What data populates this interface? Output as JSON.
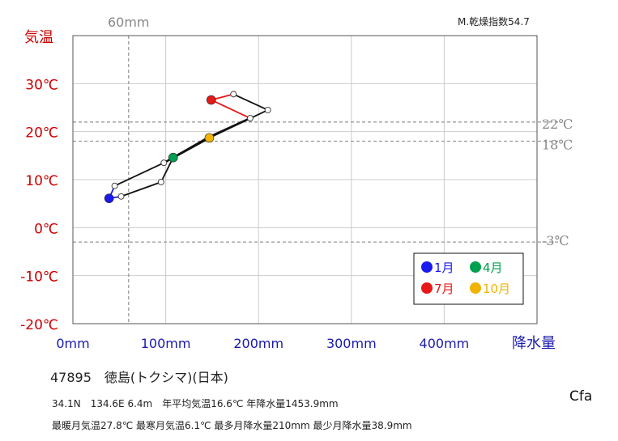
{
  "chart_data": {
    "type": "line",
    "ylabel": "気温",
    "xlabel": "降水量",
    "x_unit": "mm",
    "xlim": [
      0,
      500
    ],
    "ylim": [
      -20,
      40
    ],
    "x_ticks": [
      0,
      100,
      200,
      300,
      400
    ],
    "x_tick_labels": [
      "0mm",
      "100mm",
      "200mm",
      "300mm",
      "400mm"
    ],
    "y_ticks": [
      -20,
      -10,
      0,
      10,
      20,
      30
    ],
    "y_tick_labels": [
      "-20℃",
      "-10℃",
      "0℃",
      "10℃",
      "20℃",
      "30℃"
    ],
    "reference_lines": {
      "vertical": [
        {
          "x": 60,
          "label": "60mm"
        }
      ],
      "horizontal": [
        {
          "y": 22,
          "label": "22℃"
        },
        {
          "y": 18,
          "label": "18℃"
        },
        {
          "y": -3,
          "label": "-3℃"
        }
      ]
    },
    "aridity_index_label": "M.乾燥指数54.7",
    "months": [
      {
        "month": 1,
        "precip": 39,
        "temp": 6.1
      },
      {
        "month": 2,
        "precip": 52,
        "temp": 6.5
      },
      {
        "month": 3,
        "precip": 95,
        "temp": 9.5
      },
      {
        "month": 4,
        "precip": 108,
        "temp": 14.6
      },
      {
        "month": 5,
        "precip": 147,
        "temp": 18.9
      },
      {
        "month": 6,
        "precip": 191,
        "temp": 22.8
      },
      {
        "month": 7,
        "precip": 149,
        "temp": 26.6
      },
      {
        "month": 8,
        "precip": 173,
        "temp": 27.8
      },
      {
        "month": 9,
        "precip": 210,
        "temp": 24.5
      },
      {
        "month": 10,
        "precip": 147,
        "temp": 18.7
      },
      {
        "month": 11,
        "precip": 98,
        "temp": 13.5
      },
      {
        "month": 12,
        "precip": 45,
        "temp": 8.7
      }
    ],
    "highlight_months": [
      {
        "month": 1,
        "label": "1月",
        "color": "#1a1aee"
      },
      {
        "month": 4,
        "label": "4月",
        "color": "#00a050"
      },
      {
        "month": 7,
        "label": "7月",
        "color": "#e81818"
      },
      {
        "month": 10,
        "label": "10月",
        "color": "#f0b400"
      }
    ]
  },
  "station": {
    "title": "47895　徳島(トクシマ)(日本)",
    "line1": "34.1N　134.6E 6.4m　年平均気温16.6℃ 年降水量1453.9mm",
    "line2": "最暖月気温27.8℃ 最寒月気温6.1℃ 最多月降水量210mm 最少月降水量38.9mm"
  },
  "climate_class": "Cfa",
  "colors": {
    "temp_axis": "#cc0000",
    "precip_axis": "#1a1ab0",
    "grid": "#cccccc",
    "ref_line": "#999999",
    "plot_border": "#555555"
  }
}
